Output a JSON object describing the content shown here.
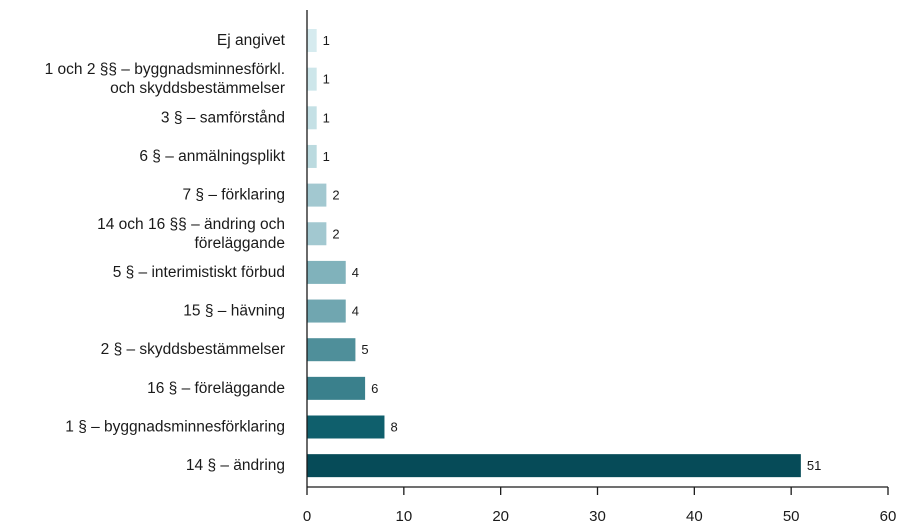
{
  "chart_data": {
    "type": "bar",
    "orientation": "horizontal",
    "categories": [
      [
        "Ej angivet"
      ],
      [
        "1 och 2 §§ – byggnadsminnesförkl.",
        "och skyddsbestämmelser"
      ],
      [
        "3 § – samförstånd"
      ],
      [
        "6 § – anmälningsplikt"
      ],
      [
        "7 § – förklaring"
      ],
      [
        "14 och 16 §§ – ändring och",
        "föreläggande"
      ],
      [
        "5 § – interimistiskt förbud"
      ],
      [
        "15 § – hävning"
      ],
      [
        "2 § – skyddsbestämmelser"
      ],
      [
        "16 § – föreläggande"
      ],
      [
        "1 § – byggnadsminnesförklaring"
      ],
      [
        "14 § – ändring"
      ]
    ],
    "values": [
      1,
      1,
      1,
      1,
      2,
      2,
      4,
      4,
      5,
      6,
      8,
      51
    ],
    "bar_colors": [
      "#d6ebef",
      "#cde6ea",
      "#c4e0e5",
      "#bbdadf",
      "#a2c8d0",
      "#a2c8d0",
      "#80b2bb",
      "#70a6b0",
      "#4f8f9a",
      "#3a808c",
      "#0f5f6c",
      "#064b58"
    ],
    "xlim": [
      0,
      60
    ],
    "xticks": [
      "0",
      "10",
      "20",
      "30",
      "40",
      "50",
      "60"
    ],
    "title": "",
    "xlabel": "",
    "ylabel": "",
    "grid": false,
    "legend": "none"
  }
}
